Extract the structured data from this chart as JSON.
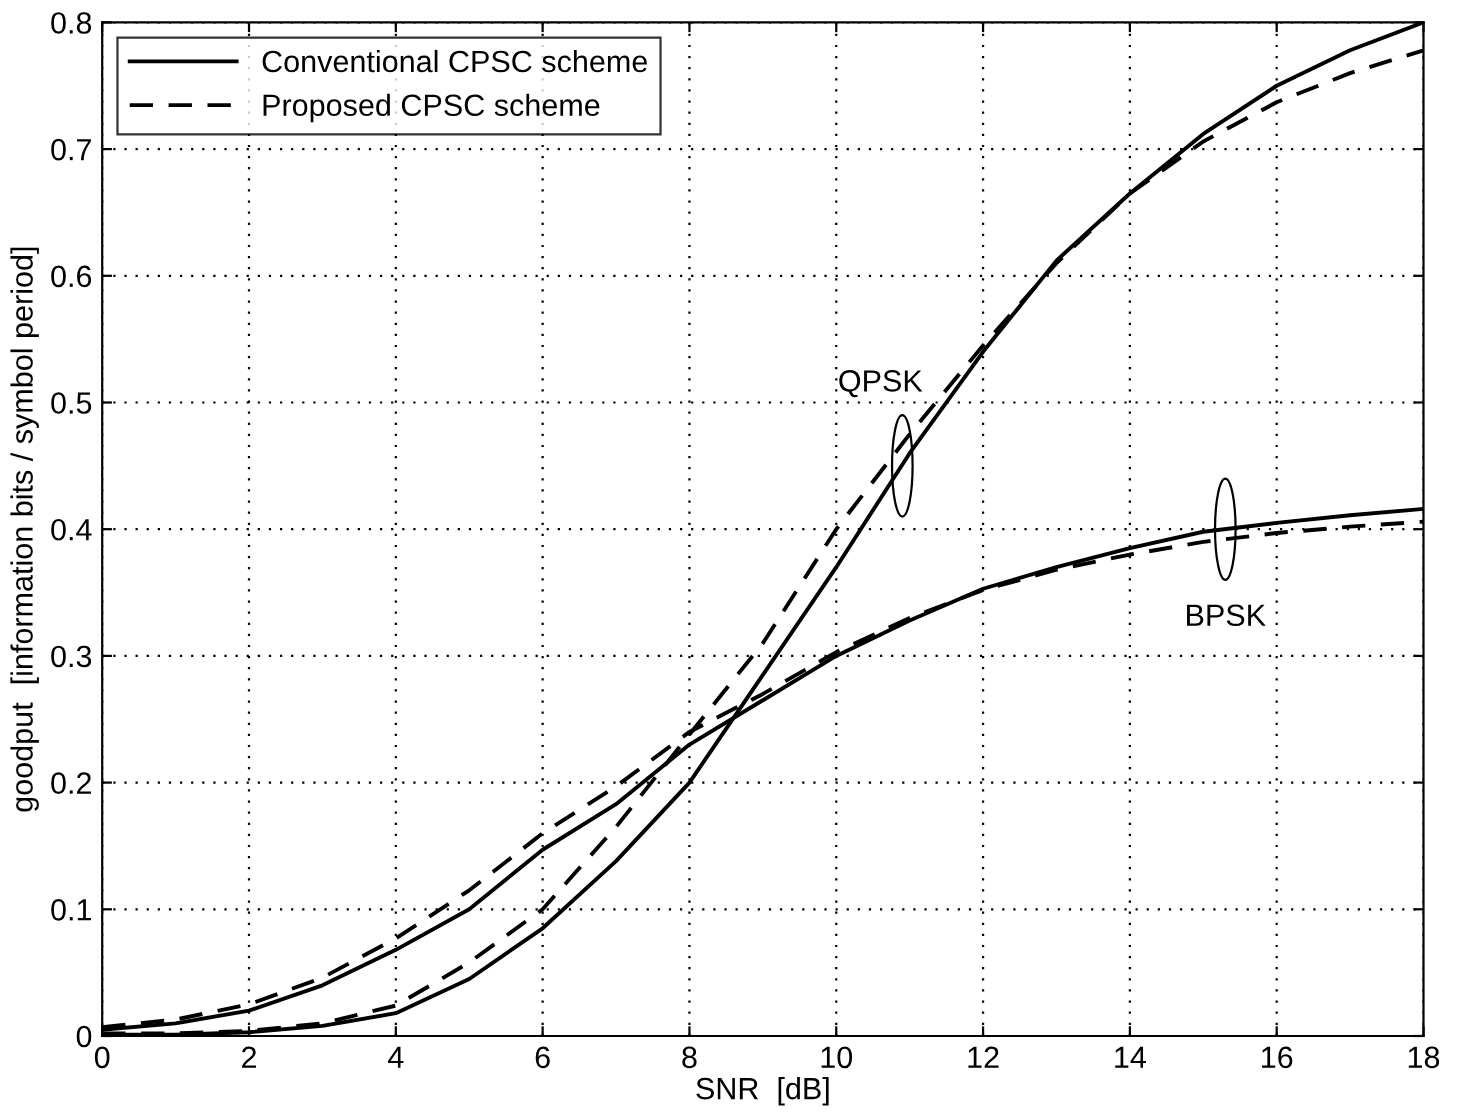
{
  "chart_data": {
    "type": "line",
    "xlabel": "SNR  [dB]",
    "ylabel": "goodput  [information bits / symbol period]",
    "x": [
      0,
      1,
      2,
      3,
      4,
      5,
      6,
      7,
      8,
      9,
      10,
      11,
      12,
      13,
      14,
      15,
      16,
      17,
      18
    ],
    "series": [
      {
        "name": "Conventional CPSC scheme",
        "color": "#000000",
        "line_style": "solid",
        "values": [
          0.001,
          0.001,
          0.003,
          0.008,
          0.018,
          0.045,
          0.085,
          0.138,
          0.2,
          0.285,
          0.37,
          0.46,
          0.54,
          0.612,
          0.665,
          0.712,
          0.75,
          0.778,
          0.8
        ]
      },
      {
        "name": "Proposed CPSC scheme",
        "color": "#000000",
        "line_style": "dashed",
        "values": [
          0.002,
          0.002,
          0.004,
          0.01,
          0.024,
          0.058,
          0.1,
          0.165,
          0.238,
          0.31,
          0.4,
          0.475,
          0.545,
          0.61,
          0.665,
          0.706,
          0.737,
          0.76,
          0.778
        ]
      },
      {
        "color": "#000000",
        "line_style": "solid",
        "values": [
          0.005,
          0.01,
          0.02,
          0.04,
          0.068,
          0.1,
          0.147,
          0.183,
          0.23,
          0.265,
          0.3,
          0.328,
          0.353,
          0.37,
          0.385,
          0.398,
          0.405,
          0.411,
          0.416
        ]
      },
      {
        "color": "#000000",
        "line_style": "dashed",
        "values": [
          0.007,
          0.013,
          0.025,
          0.046,
          0.077,
          0.115,
          0.16,
          0.197,
          0.24,
          0.27,
          0.303,
          0.33,
          0.352,
          0.368,
          0.38,
          0.39,
          0.397,
          0.402,
          0.406
        ]
      }
    ],
    "annotations": [
      {
        "text": "QPSK",
        "x": 10.9,
        "y": 0.45
      },
      {
        "text": "BPSK",
        "x": 15.3,
        "y": 0.4
      }
    ],
    "xlim": [
      0,
      18
    ],
    "xticks": [
      0,
      2,
      4,
      6,
      8,
      10,
      12,
      14,
      16,
      18
    ],
    "ylim": [
      0,
      0.8
    ],
    "yticks": [
      0,
      0.1,
      0.2,
      0.3,
      0.4,
      0.5,
      0.6,
      0.7,
      0.8
    ],
    "grid": true,
    "legend": "top left",
    "marker": "none"
  }
}
